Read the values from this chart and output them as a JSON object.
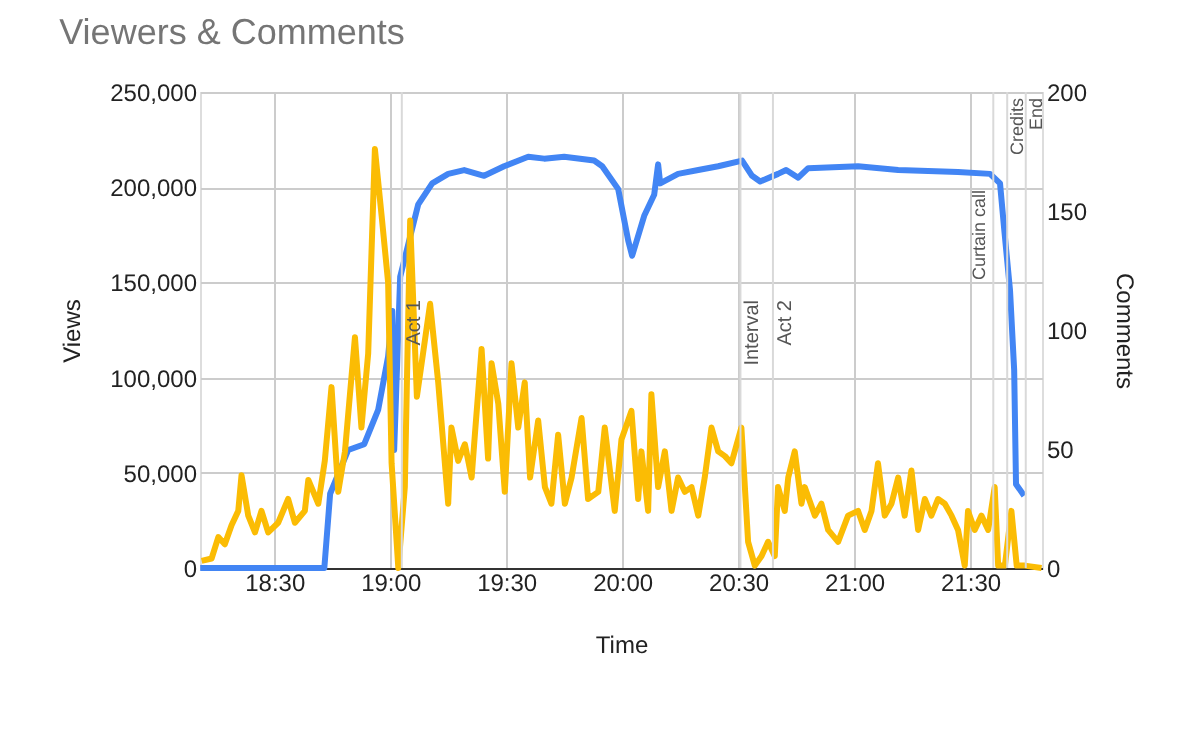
{
  "chart_data": {
    "type": "line",
    "title": "Viewers & Comments",
    "xlabel": "Time",
    "ylabel": "Views",
    "y2label": "Comments",
    "xlim": [
      18.18,
      21.81
    ],
    "xticks": [
      {
        "value": 18.5,
        "label": "18:30"
      },
      {
        "value": 19,
        "label": "19:00"
      },
      {
        "value": 19.5,
        "label": "19:30"
      },
      {
        "value": 20,
        "label": "20:00"
      },
      {
        "value": 20.5,
        "label": "20:30"
      },
      {
        "value": 21,
        "label": "21:00"
      },
      {
        "value": 21.5,
        "label": "21:30"
      }
    ],
    "ylim": [
      0,
      250000
    ],
    "yticks": [
      {
        "value": 0,
        "label": "0"
      },
      {
        "value": 50000,
        "label": "50,000"
      },
      {
        "value": 100000,
        "label": "100,000"
      },
      {
        "value": 150000,
        "label": "150,000"
      },
      {
        "value": 200000,
        "label": "200,000"
      },
      {
        "value": 250000,
        "label": "250,000"
      }
    ],
    "y2lim": [
      0,
      200
    ],
    "y2ticks": [
      0,
      50,
      100,
      150,
      200
    ],
    "grid": true,
    "marker": "none",
    "line_style": "solid",
    "ref_lines": [
      {
        "axis": "x",
        "value": 19.05,
        "label": "Act 1",
        "color": "#d9d9d9"
      },
      {
        "axis": "x",
        "value": 20.51,
        "label": "Interval",
        "color": "#d9d9d9"
      },
      {
        "axis": "x",
        "value": 20.65,
        "label": "Act 2",
        "color": "#d9d9d9"
      },
      {
        "axis": "x",
        "value": 21.6,
        "label": "Curtain call",
        "color": "#d9d9d9"
      },
      {
        "axis": "x",
        "value": 21.66,
        "label": "Credits",
        "color": "#d9d9d9"
      },
      {
        "axis": "x",
        "value": 21.74,
        "label": "End",
        "color": "#d9d9d9"
      }
    ],
    "series": [
      {
        "color": "#4285f4",
        "x": [
          18.181,
          18.716,
          18.741,
          18.819,
          18.888,
          18.948,
          18.991,
          19.009,
          19.017,
          19.043,
          19.078,
          19.121,
          19.181,
          19.25,
          19.319,
          19.405,
          19.491,
          19.595,
          19.664,
          19.75,
          19.879,
          19.914,
          19.983,
          20.026,
          20.043,
          20.095,
          20.138,
          20.155,
          20.164,
          20.241,
          20.328,
          20.414,
          20.517,
          20.56,
          20.595,
          20.672,
          20.707,
          20.759,
          20.802,
          21.017,
          21.19,
          21.448,
          21.586,
          21.629,
          21.647,
          21.672,
          21.69,
          21.698,
          21.733
        ],
        "values": [
          0,
          0,
          39000,
          62000,
          65000,
          83000,
          111000,
          135000,
          62000,
          153000,
          170000,
          191000,
          202000,
          207000,
          209000,
          206000,
          211000,
          216000,
          215000,
          216000,
          214000,
          211000,
          199000,
          172000,
          164000,
          185000,
          196000,
          212000,
          202000,
          207000,
          209000,
          211000,
          214000,
          206000,
          203000,
          207000,
          209000,
          205000,
          210000,
          211000,
          209000,
          208000,
          207000,
          202000,
          178000,
          146000,
          104000,
          44000,
          38000
        ]
      },
      {
        "color": "#fbbc04",
        "axis": "y2",
        "x": [
          18.187,
          18.23,
          18.259,
          18.287,
          18.316,
          18.345,
          18.359,
          18.388,
          18.417,
          18.445,
          18.474,
          18.517,
          18.56,
          18.589,
          18.632,
          18.647,
          18.69,
          18.718,
          18.747,
          18.776,
          18.805,
          18.848,
          18.876,
          18.905,
          18.934,
          18.963,
          18.991,
          19.006,
          19.035,
          19.063,
          19.086,
          19.115,
          19.172,
          19.207,
          19.25,
          19.264,
          19.293,
          19.322,
          19.351,
          19.365,
          19.394,
          19.422,
          19.437,
          19.466,
          19.494,
          19.523,
          19.552,
          19.58,
          19.603,
          19.638,
          19.667,
          19.695,
          19.724,
          19.753,
          19.782,
          19.825,
          19.853,
          19.897,
          19.925,
          19.968,
          19.997,
          20.04,
          20.069,
          20.083,
          20.112,
          20.126,
          20.155,
          20.184,
          20.213,
          20.241,
          20.27,
          20.299,
          20.328,
          20.356,
          20.385,
          20.414,
          20.443,
          20.471,
          20.514,
          20.543,
          20.572,
          20.601,
          20.629,
          20.658,
          20.672,
          20.701,
          20.716,
          20.744,
          20.773,
          20.787,
          20.831,
          20.859,
          20.888,
          20.931,
          20.974,
          21.017,
          21.046,
          21.075,
          21.103,
          21.132,
          21.161,
          21.19,
          21.218,
          21.247,
          21.276,
          21.305,
          21.333,
          21.362,
          21.391,
          21.42,
          21.448,
          21.477,
          21.491,
          21.52,
          21.549,
          21.578,
          21.606,
          21.621,
          21.65,
          21.678,
          21.701,
          21.736,
          21.808
        ],
        "values": [
          3,
          4,
          13,
          10,
          18,
          24,
          39,
          22,
          15,
          24,
          15,
          19,
          29,
          19,
          24,
          37,
          27,
          45,
          76,
          32,
          49,
          97,
          59,
          90,
          176,
          148,
          120,
          44,
          0,
          34,
          146,
          72,
          111,
          78,
          27,
          59,
          45,
          52,
          38,
          56,
          92,
          46,
          86,
          69,
          32,
          86,
          59,
          78,
          38,
          62,
          34,
          27,
          56,
          27,
          38,
          63,
          29,
          32,
          59,
          24,
          54,
          66,
          29,
          49,
          24,
          73,
          34,
          49,
          24,
          38,
          32,
          34,
          22,
          38,
          59,
          49,
          47,
          44,
          59,
          11,
          1,
          5,
          11,
          5,
          34,
          24,
          38,
          49,
          27,
          34,
          22,
          27,
          16,
          11,
          22,
          24,
          16,
          24,
          44,
          22,
          27,
          38,
          22,
          41,
          16,
          29,
          22,
          29,
          27,
          22,
          16,
          1,
          24,
          16,
          22,
          16,
          34,
          1,
          1,
          24,
          1,
          1,
          0
        ]
      }
    ]
  }
}
